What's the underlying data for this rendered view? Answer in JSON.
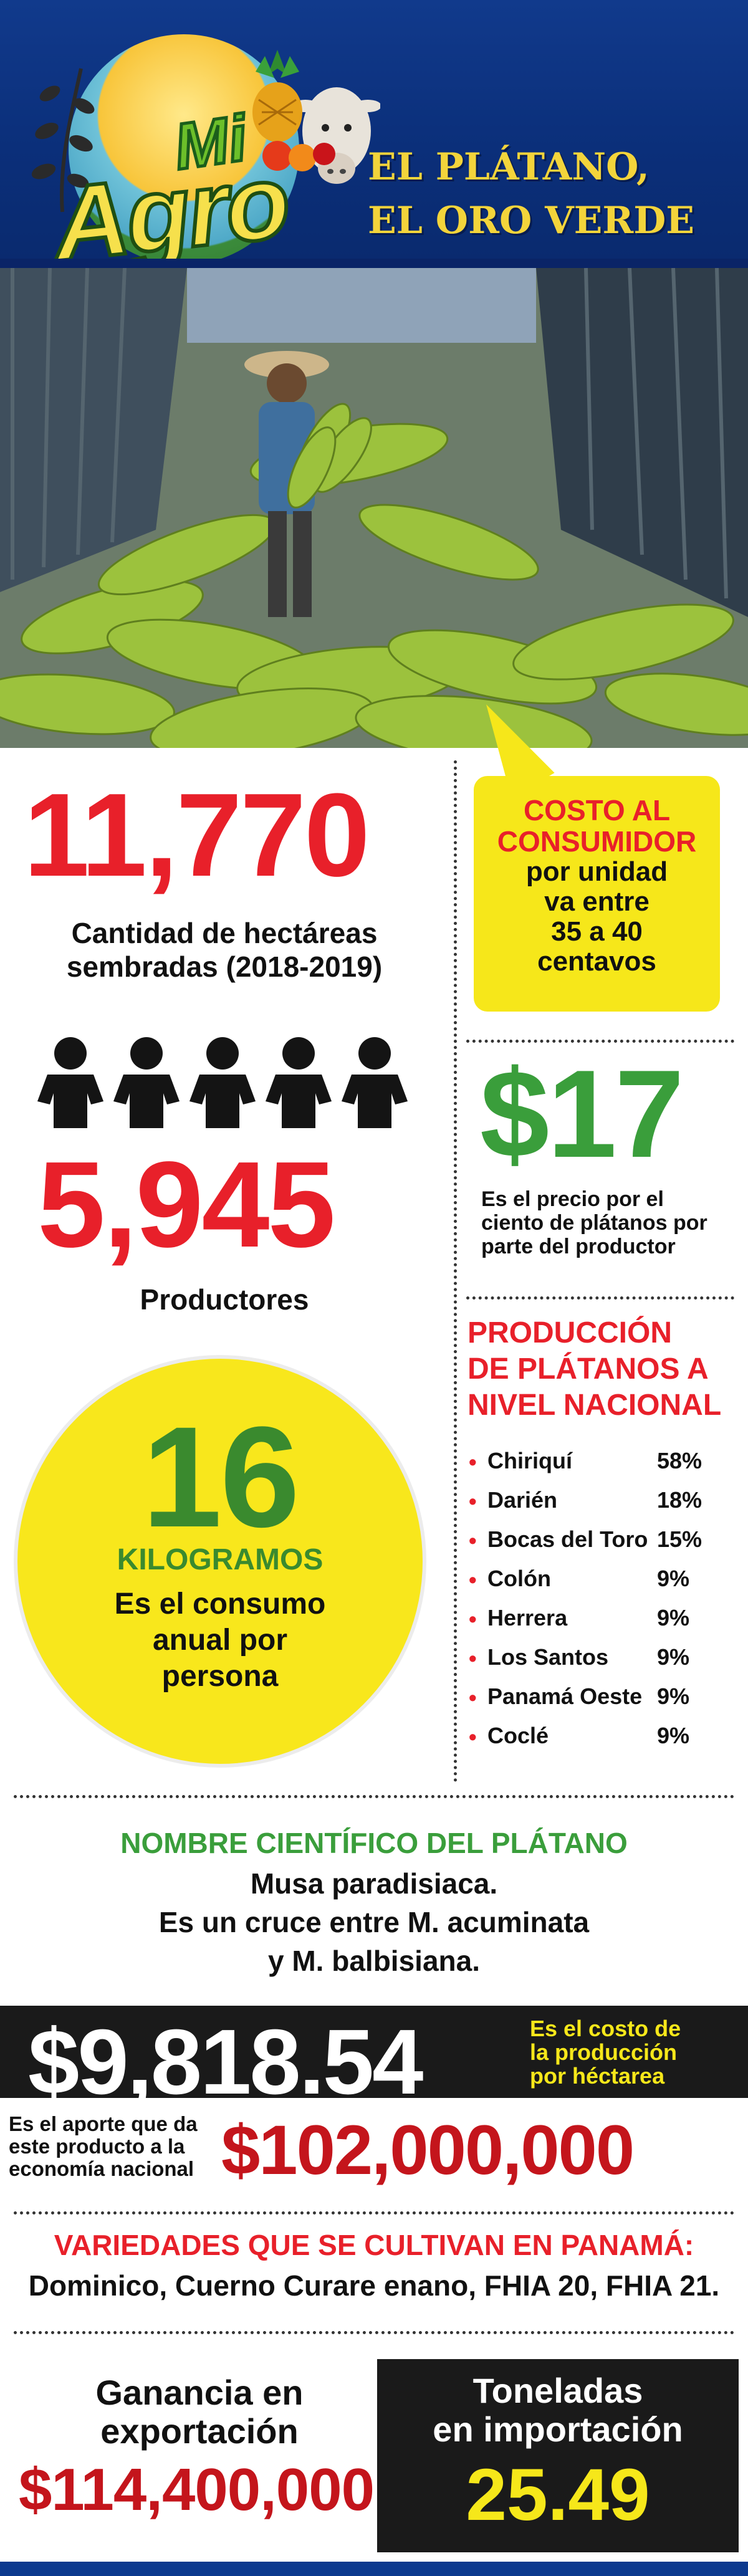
{
  "header": {
    "logo_mi": "Mi",
    "logo_agro": "Agro",
    "title_line1": "EL PLÁTANO,",
    "title_line2": "EL ORO VERDE"
  },
  "hectares": {
    "value": "11,770",
    "label_line1": "Cantidad de hectáreas",
    "label_line2": "sembradas (2018-2019)"
  },
  "consumer_cost": {
    "title_line1": "COSTO AL",
    "title_line2": "CONSUMIDOR",
    "body_line1": "por unidad",
    "body_line2": "va entre",
    "body_line3": "35 a 40",
    "body_line4": "centavos"
  },
  "producers": {
    "value": "5,945",
    "label": "Productores",
    "icon": "person-icon"
  },
  "producer_price": {
    "value": "$17",
    "label_line1": "Es el precio por el",
    "label_line2": "ciento de plátanos por",
    "label_line3": "parte del productor"
  },
  "consumption": {
    "value": "16",
    "unit": "KILOGRAMOS",
    "label_line1": "Es el consumo",
    "label_line2": "anual por",
    "label_line3": "persona"
  },
  "production": {
    "title_line1": "PRODUCCIÓN",
    "title_line2": "DE PLÁTANOS A",
    "title_line3": "NIVEL NACIONAL",
    "items": [
      {
        "name": "Chiriquí",
        "pct": "58%"
      },
      {
        "name": "Darién",
        "pct": "18%"
      },
      {
        "name": "Bocas del Toro",
        "pct": "15%"
      },
      {
        "name": "Colón",
        "pct": "9%"
      },
      {
        "name": "Herrera",
        "pct": "9%"
      },
      {
        "name": "Los Santos",
        "pct": "9%"
      },
      {
        "name": "Panamá Oeste",
        "pct": "9%"
      },
      {
        "name": "Coclé",
        "pct": "9%"
      }
    ]
  },
  "scientific": {
    "title": "NOMBRE CIENTÍFICO DEL  PLÁTANO",
    "line1": "Musa paradisiaca.",
    "line2": "Es un cruce entre  M. acuminata",
    "line3": "y M. balbisiana."
  },
  "production_cost": {
    "value": "$9,818.54",
    "note_line1": "Es el costo de",
    "note_line2": "la producción",
    "note_line3": "por héctarea"
  },
  "contribution": {
    "note_line1": "Es el aporte que da",
    "note_line2": "este producto a la",
    "note_line3": "economía nacional",
    "value": "$102,000,000"
  },
  "varieties": {
    "title": "VARIEDADES QUE SE CULTIVAN EN PANAMÁ:",
    "text": "Dominico, Cuerno Curare enano, FHIA 20, FHIA 21."
  },
  "export": {
    "label_line1": "Ganancia en",
    "label_line2": "exportación",
    "value": "$114,400,000"
  },
  "import": {
    "label_line1": "Toneladas",
    "label_line2": "en importación",
    "value": "25.49"
  },
  "colors": {
    "red": "#e8202a",
    "green": "#3a9e3b",
    "yellow": "#f6e71a",
    "navy": "#0b2f7a",
    "black": "#1a1a1a"
  }
}
